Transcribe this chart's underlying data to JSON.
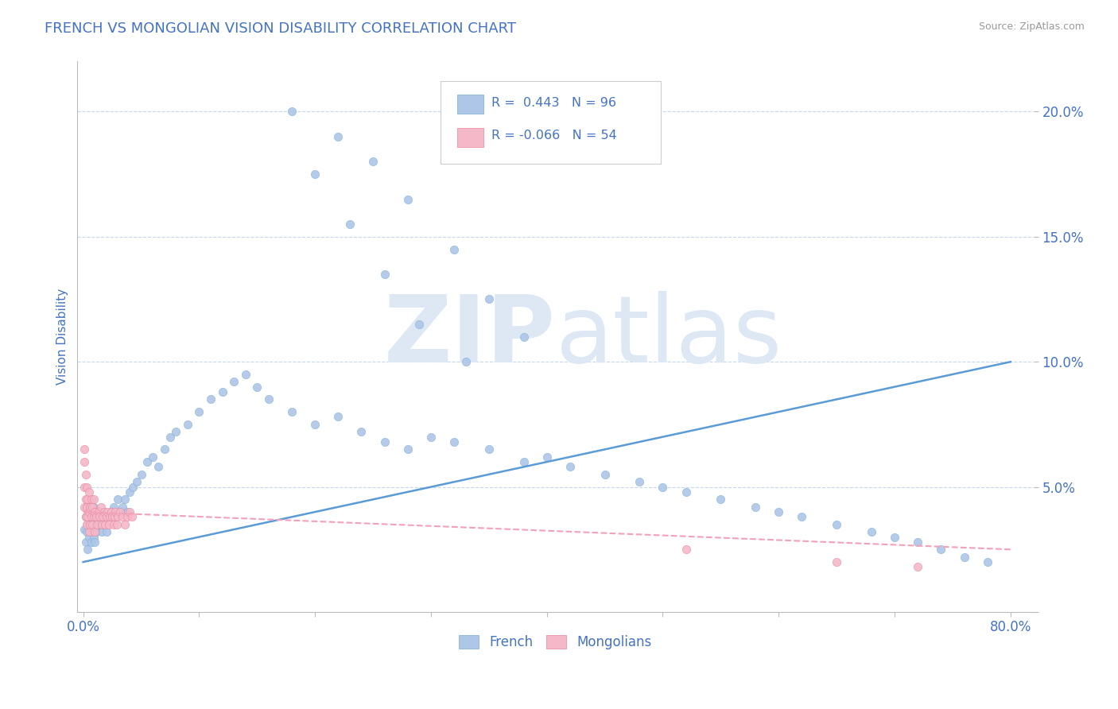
{
  "title": "FRENCH VS MONGOLIAN VISION DISABILITY CORRELATION CHART",
  "source": "Source: ZipAtlas.com",
  "ylabel": "Vision Disability",
  "french_R": 0.443,
  "french_N": 96,
  "mongolian_R": -0.066,
  "mongolian_N": 54,
  "french_color": "#aec6e8",
  "french_edge_color": "#7aadd4",
  "mongolian_color": "#f5b8c8",
  "mongolian_edge_color": "#e8829a",
  "french_line_color": "#5b9bd5",
  "mongolian_line_color": "#f4a0b8",
  "background_color": "#ffffff",
  "grid_color": "#c8d8ec",
  "title_color": "#4472c4",
  "axis_label_color": "#4472c4",
  "tick_color": "#4472c4",
  "watermark_color": "#dde8f4",
  "ylim": [
    0.0,
    0.22
  ],
  "xlim": [
    -0.005,
    0.82
  ],
  "yticks": [
    0.0,
    0.05,
    0.1,
    0.15,
    0.2
  ],
  "ytick_labels": [
    "",
    "5.0%",
    "10.0%",
    "15.0%",
    "20.0%"
  ],
  "xticks": [
    0.0,
    0.1,
    0.2,
    0.3,
    0.4,
    0.5,
    0.6,
    0.7,
    0.8
  ],
  "xtick_labels": [
    "0.0%",
    "",
    "",
    "",
    "",
    "",
    "",
    "",
    "80.0%"
  ],
  "french_scatter_x": [
    0.001,
    0.002,
    0.002,
    0.003,
    0.003,
    0.004,
    0.004,
    0.005,
    0.005,
    0.006,
    0.006,
    0.007,
    0.007,
    0.008,
    0.008,
    0.009,
    0.009,
    0.01,
    0.01,
    0.011,
    0.011,
    0.012,
    0.013,
    0.014,
    0.015,
    0.016,
    0.017,
    0.018,
    0.019,
    0.02,
    0.022,
    0.024,
    0.026,
    0.028,
    0.03,
    0.032,
    0.034,
    0.036,
    0.038,
    0.04,
    0.043,
    0.046,
    0.05,
    0.055,
    0.06,
    0.065,
    0.07,
    0.075,
    0.08,
    0.09,
    0.1,
    0.11,
    0.12,
    0.13,
    0.14,
    0.15,
    0.16,
    0.18,
    0.2,
    0.22,
    0.24,
    0.26,
    0.28,
    0.3,
    0.32,
    0.35,
    0.38,
    0.4,
    0.42,
    0.45,
    0.48,
    0.5,
    0.52,
    0.55,
    0.58,
    0.6,
    0.62,
    0.65,
    0.68,
    0.7,
    0.72,
    0.74,
    0.76,
    0.78,
    0.22,
    0.25,
    0.28,
    0.32,
    0.35,
    0.38,
    0.18,
    0.2,
    0.23,
    0.26,
    0.29,
    0.33
  ],
  "french_scatter_y": [
    0.033,
    0.028,
    0.038,
    0.032,
    0.042,
    0.035,
    0.025,
    0.03,
    0.038,
    0.032,
    0.04,
    0.035,
    0.028,
    0.032,
    0.038,
    0.03,
    0.042,
    0.035,
    0.028,
    0.032,
    0.038,
    0.035,
    0.04,
    0.035,
    0.038,
    0.032,
    0.04,
    0.035,
    0.038,
    0.032,
    0.038,
    0.04,
    0.042,
    0.038,
    0.045,
    0.04,
    0.042,
    0.045,
    0.04,
    0.048,
    0.05,
    0.052,
    0.055,
    0.06,
    0.062,
    0.058,
    0.065,
    0.07,
    0.072,
    0.075,
    0.08,
    0.085,
    0.088,
    0.092,
    0.095,
    0.09,
    0.085,
    0.08,
    0.075,
    0.078,
    0.072,
    0.068,
    0.065,
    0.07,
    0.068,
    0.065,
    0.06,
    0.062,
    0.058,
    0.055,
    0.052,
    0.05,
    0.048,
    0.045,
    0.042,
    0.04,
    0.038,
    0.035,
    0.032,
    0.03,
    0.028,
    0.025,
    0.022,
    0.02,
    0.19,
    0.18,
    0.165,
    0.145,
    0.125,
    0.11,
    0.2,
    0.175,
    0.155,
    0.135,
    0.115,
    0.1
  ],
  "mongolian_scatter_x": [
    0.001,
    0.001,
    0.001,
    0.002,
    0.002,
    0.002,
    0.003,
    0.003,
    0.003,
    0.004,
    0.004,
    0.005,
    0.005,
    0.005,
    0.006,
    0.006,
    0.007,
    0.007,
    0.008,
    0.008,
    0.009,
    0.009,
    0.01,
    0.01,
    0.011,
    0.012,
    0.013,
    0.014,
    0.015,
    0.016,
    0.017,
    0.018,
    0.019,
    0.02,
    0.021,
    0.022,
    0.023,
    0.024,
    0.025,
    0.026,
    0.027,
    0.028,
    0.029,
    0.03,
    0.032,
    0.034,
    0.036,
    0.038,
    0.04,
    0.042,
    0.001,
    0.52,
    0.65,
    0.72
  ],
  "mongolian_scatter_y": [
    0.042,
    0.05,
    0.06,
    0.038,
    0.045,
    0.055,
    0.035,
    0.042,
    0.05,
    0.038,
    0.045,
    0.032,
    0.04,
    0.048,
    0.035,
    0.042,
    0.038,
    0.045,
    0.035,
    0.042,
    0.038,
    0.045,
    0.032,
    0.04,
    0.038,
    0.035,
    0.04,
    0.038,
    0.042,
    0.035,
    0.038,
    0.04,
    0.035,
    0.038,
    0.04,
    0.035,
    0.038,
    0.04,
    0.038,
    0.035,
    0.038,
    0.04,
    0.035,
    0.038,
    0.04,
    0.038,
    0.035,
    0.038,
    0.04,
    0.038,
    0.065,
    0.025,
    0.02,
    0.018
  ]
}
